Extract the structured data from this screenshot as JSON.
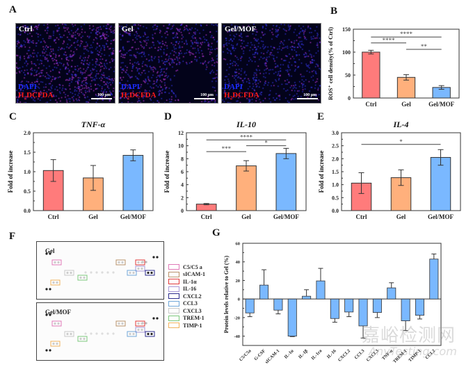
{
  "panels": {
    "A": {
      "letter": "A",
      "images": [
        {
          "title": "Ctrl",
          "stain1": "DAPI",
          "stain2_main": "H",
          "stain2_sub": "2",
          "stain2_rest": "DCFDA",
          "scale": "100 μm"
        },
        {
          "title": "Gel",
          "stain1": "DAPI",
          "stain2_main": "H",
          "stain2_sub": "2",
          "stain2_rest": "DCFDA",
          "scale": "100 μm"
        },
        {
          "title": "Gel/MOF",
          "stain1": "DAPI",
          "stain2_main": "H",
          "stain2_sub": "2",
          "stain2_rest": "DCFDA",
          "scale": "100 μm"
        }
      ]
    },
    "B": {
      "letter": "B"
    },
    "C": {
      "letter": "C"
    },
    "D": {
      "letter": "D"
    },
    "E": {
      "letter": "E"
    },
    "F": {
      "letter": "F",
      "blots": [
        {
          "title": "Gel"
        },
        {
          "title": "Gel/MOF"
        }
      ],
      "legend": [
        {
          "label": "C5/C5 a",
          "color": "#e07ab8"
        },
        {
          "label": "sICAM-1",
          "color": "#b8926a"
        },
        {
          "label": "IL-1α",
          "color": "#e03a3a"
        },
        {
          "label": "IL-16",
          "color": "#a99ad6"
        },
        {
          "label": "CXCL2",
          "color": "#2c2c8c"
        },
        {
          "label": "CCL3",
          "color": "#6fa6d8"
        },
        {
          "label": "CXCL3",
          "color": "#c8c8c8"
        },
        {
          "label": "TREM-1",
          "color": "#7cc87c"
        },
        {
          "label": "TIMP-1",
          "color": "#f0b25c"
        }
      ]
    },
    "G": {
      "letter": "G"
    }
  },
  "colors": {
    "ctrl": "#ff7b7b",
    "gel": "#ffb07c",
    "gelmof": "#7ab8ff",
    "g_bar": "#7ab8ff"
  },
  "watermark": {
    "cn": "嘉峪检测网",
    "en": "AnyTesting.com"
  },
  "chart_data": [
    {
      "id": "B",
      "type": "bar",
      "title": "",
      "categories": [
        "Ctrl",
        "Gel",
        "Gel/MOF"
      ],
      "values": [
        100,
        45,
        23
      ],
      "errors": [
        4,
        6,
        4
      ],
      "ylabel": "ROS⁺ cell density(% of Ctrl)",
      "xlabel": "",
      "ylim": [
        0,
        150
      ],
      "yticks": [
        0,
        50,
        100,
        150
      ],
      "significance": [
        {
          "from": 0,
          "to": 2,
          "label": "****",
          "y": 133
        },
        {
          "from": 0,
          "to": 1,
          "label": "****",
          "y": 120
        },
        {
          "from": 1,
          "to": 2,
          "label": "**",
          "y": 106
        }
      ]
    },
    {
      "id": "C",
      "type": "bar",
      "title": "TNF-α",
      "categories": [
        "Ctrl",
        "Gel",
        "Gel/MOF"
      ],
      "values": [
        1.03,
        0.84,
        1.42
      ],
      "errors": [
        0.28,
        0.32,
        0.14
      ],
      "ylabel": "Fold of increase",
      "xlabel": "",
      "ylim": [
        0,
        2.0
      ],
      "yticks": [
        0.0,
        0.5,
        1.0,
        1.5,
        2.0
      ],
      "yticklabels": [
        "0.0",
        "0.5",
        "1.0",
        "1.5",
        "2.0"
      ],
      "significance": []
    },
    {
      "id": "D",
      "type": "bar",
      "title": "IL-10",
      "categories": [
        "Ctrl",
        "Gel",
        "Gel/MOF"
      ],
      "values": [
        1.0,
        6.9,
        8.8
      ],
      "errors": [
        0.1,
        0.8,
        0.8
      ],
      "ylabel": "Fold of increase",
      "xlabel": "",
      "ylim": [
        0,
        12
      ],
      "yticks": [
        0,
        2,
        4,
        6,
        8,
        10,
        12
      ],
      "significance": [
        {
          "from": 0,
          "to": 2,
          "label": "****",
          "y": 10.9
        },
        {
          "from": 0,
          "to": 1,
          "label": "***",
          "y": 9.1
        },
        {
          "from": 1,
          "to": 2,
          "label": "*",
          "y": 10.0
        }
      ]
    },
    {
      "id": "E",
      "type": "bar",
      "title": "IL-4",
      "categories": [
        "Ctrl",
        "Gel",
        "Gel/MOF"
      ],
      "values": [
        1.06,
        1.27,
        2.05
      ],
      "errors": [
        0.4,
        0.3,
        0.3
      ],
      "ylabel": "Fold of increase",
      "xlabel": "",
      "ylim": [
        0,
        3.0
      ],
      "yticks": [
        0.0,
        0.5,
        1.0,
        1.5,
        2.0,
        2.5,
        3.0
      ],
      "yticklabels": [
        "0.0",
        "0.5",
        "1.0",
        "1.5",
        "2.0",
        "2.5",
        "3.0"
      ],
      "significance": [
        {
          "from": 0,
          "to": 2,
          "label": "*",
          "y": 2.55
        }
      ]
    },
    {
      "id": "G",
      "type": "bar",
      "title": "",
      "categories": [
        "C5/C5a",
        "G-CSF",
        "sICAM-1",
        "IL-1α",
        "IL-1β",
        "IL-1ra",
        "IL-16",
        "CXCL2",
        "CCL3",
        "CXCL3",
        "TNF-α",
        "TREM-1",
        "TIMP-1",
        "CCL2"
      ],
      "values": [
        -15,
        15,
        -12,
        -40,
        3,
        19.5,
        -21,
        -14,
        -29,
        -14.5,
        12,
        -23.5,
        -17.5,
        43
      ],
      "errors": [
        4,
        16.5,
        4,
        0.5,
        7,
        13.5,
        4,
        5,
        13,
        5.5,
        5.5,
        10.5,
        4,
        5.5
      ],
      "ylabel": "Protein levels relative to Gel (%)",
      "xlabel": "",
      "ylim": [
        -50,
        60
      ],
      "yticks": [
        -40,
        -20,
        0,
        20,
        40,
        60
      ],
      "significance": []
    }
  ]
}
